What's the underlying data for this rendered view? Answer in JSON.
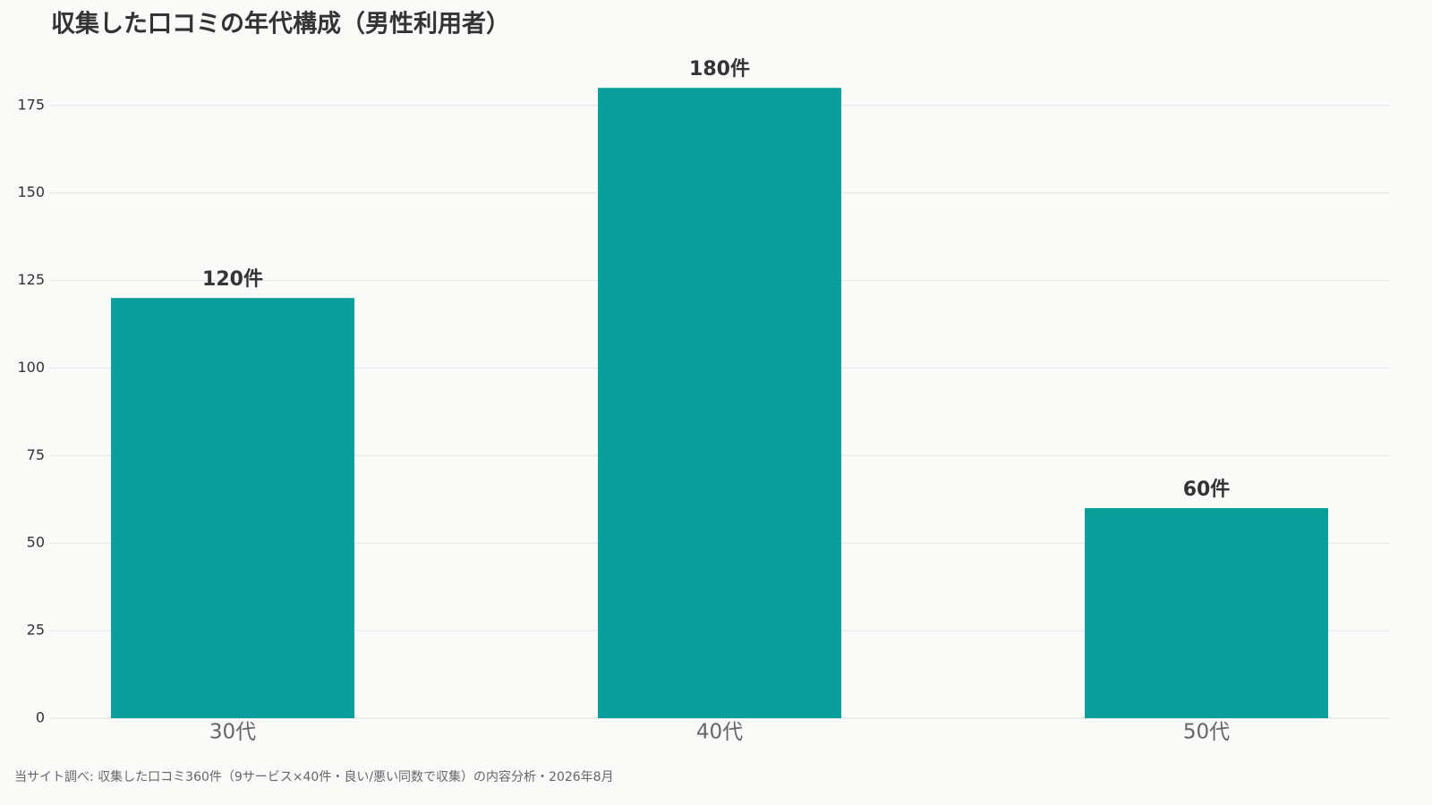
{
  "chart_data": {
    "type": "bar",
    "title": "収集した口コミの年代構成（男性利用者）",
    "categories": [
      "30代",
      "40代",
      "50代"
    ],
    "values": [
      120,
      180,
      60
    ],
    "value_labels": [
      "120件",
      "180件",
      "60件"
    ],
    "color": "#0a9e9a",
    "ylim": [
      0,
      189
    ],
    "yticks": [
      0,
      25,
      50,
      75,
      100,
      125,
      150,
      175
    ],
    "grid": true,
    "source": "当サイト調べ: 収集した口コミ360件（9サービス×40件・良い/悪い同数で収集）の内容分析・2026年8月"
  }
}
